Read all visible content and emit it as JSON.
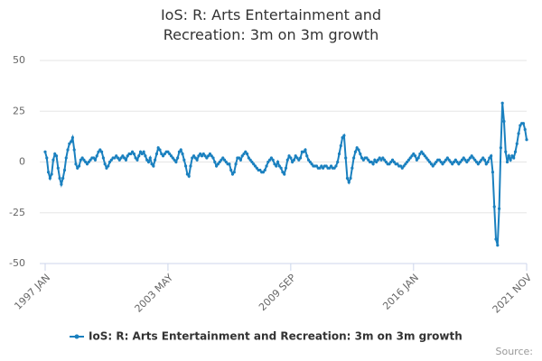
{
  "chart_data": {
    "type": "line",
    "title": "IoS: R: Arts Entertainment and Recreation: 3m on 3m growth",
    "source_label": "Source:",
    "categories": [
      "1997 JAN",
      null,
      null,
      null,
      null,
      null,
      null,
      null,
      null,
      null,
      null,
      null,
      null,
      null,
      null,
      null,
      null,
      null,
      null,
      null,
      null,
      null,
      null,
      null,
      null,
      null,
      null,
      null,
      null,
      null,
      null,
      null,
      null,
      null,
      null,
      null,
      null,
      null,
      null,
      null,
      null,
      null,
      null,
      null,
      null,
      null,
      null,
      null,
      null,
      null,
      null,
      null,
      null,
      null,
      null,
      null,
      null,
      null,
      null,
      null,
      null,
      null,
      null,
      null,
      null,
      null,
      null,
      null,
      null,
      null,
      null,
      null,
      null,
      null,
      null,
      null,
      "2003 MAY",
      null,
      null,
      null,
      null,
      null,
      null,
      null,
      null,
      null,
      null,
      null,
      null,
      null,
      null,
      null,
      null,
      null,
      null,
      null,
      null,
      null,
      null,
      null,
      null,
      null,
      null,
      null,
      null,
      null,
      null,
      null,
      null,
      null,
      null,
      null,
      null,
      null,
      null,
      null,
      null,
      null,
      null,
      null,
      null,
      null,
      null,
      null,
      null,
      null,
      null,
      null,
      null,
      null,
      null,
      null,
      null,
      null,
      null,
      null,
      null,
      null,
      null,
      null,
      null,
      null,
      null,
      null,
      null,
      null,
      null,
      null,
      null,
      null,
      null,
      null,
      "2009 SEP",
      null,
      null,
      null,
      null,
      null,
      null,
      null,
      null,
      null,
      null,
      null,
      null,
      null,
      null,
      null,
      null,
      null,
      null,
      null,
      null,
      null,
      null,
      null,
      null,
      null,
      null,
      null,
      null,
      null,
      null,
      null,
      null,
      null,
      null,
      null,
      null,
      null,
      null,
      null,
      null,
      null,
      null,
      null,
      null,
      null,
      null,
      null,
      null,
      null,
      null,
      null,
      null,
      null,
      null,
      null,
      null,
      null,
      null,
      null,
      null,
      null,
      null,
      null,
      null,
      null,
      null,
      null,
      null,
      null,
      null,
      null,
      null,
      null,
      null,
      null,
      "2016 JAN",
      null,
      null,
      null,
      null,
      null,
      null,
      null,
      null,
      null,
      null,
      null,
      null,
      null,
      null,
      null,
      null,
      null,
      null,
      null,
      null,
      null,
      null,
      null,
      null,
      null,
      null,
      null,
      null,
      null,
      null,
      null,
      null,
      null,
      null,
      null,
      null,
      null,
      null,
      null,
      null,
      null,
      null,
      null,
      null,
      null,
      null,
      null,
      null,
      null,
      null,
      null,
      null,
      null,
      null,
      null,
      null,
      null,
      null,
      null,
      null,
      null,
      null,
      null,
      null,
      null,
      null,
      null,
      null,
      null,
      "2021 NOV"
    ],
    "series": [
      {
        "name": "IoS: R: Arts Entertainment and Recreation: 3m on 3m growth",
        "color": "#1a80bf",
        "values": [
          5,
          2,
          -5,
          -8,
          -6,
          1,
          4,
          3,
          -3,
          -8,
          -11,
          -8,
          -4,
          2,
          6,
          9,
          10,
          12,
          6,
          -1,
          -3,
          -2,
          1,
          2,
          1,
          0,
          -1,
          0,
          1,
          2,
          2,
          1,
          3,
          5,
          6,
          5,
          2,
          -1,
          -3,
          -2,
          0,
          1,
          2,
          2,
          3,
          2,
          1,
          2,
          3,
          2,
          1,
          3,
          4,
          4,
          5,
          4,
          2,
          1,
          3,
          5,
          4,
          5,
          3,
          1,
          0,
          2,
          -1,
          -2,
          1,
          4,
          7,
          6,
          4,
          3,
          4,
          5,
          5,
          4,
          3,
          2,
          1,
          0,
          2,
          5,
          6,
          4,
          1,
          -2,
          -6,
          -7,
          -2,
          2,
          3,
          2,
          1,
          3,
          4,
          3,
          4,
          3,
          2,
          3,
          4,
          3,
          2,
          0,
          -2,
          -1,
          0,
          1,
          2,
          1,
          0,
          -1,
          -1,
          -4,
          -6,
          -5,
          -1,
          2,
          2,
          1,
          3,
          4,
          5,
          4,
          2,
          1,
          0,
          -1,
          -2,
          -3,
          -4,
          -4,
          -5,
          -5,
          -4,
          -2,
          0,
          1,
          2,
          1,
          -1,
          -2,
          0,
          -2,
          -3,
          -5,
          -6,
          -3,
          1,
          3,
          2,
          0,
          1,
          3,
          2,
          1,
          2,
          5,
          5,
          6,
          3,
          1,
          0,
          -1,
          -2,
          -2,
          -2,
          -3,
          -3,
          -2,
          -3,
          -2,
          -2,
          -3,
          -3,
          -2,
          -3,
          -3,
          -2,
          0,
          4,
          8,
          12,
          13,
          2,
          -8,
          -10,
          -8,
          -3,
          2,
          5,
          7,
          6,
          4,
          2,
          1,
          2,
          2,
          1,
          0,
          0,
          -1,
          1,
          0,
          1,
          2,
          1,
          2,
          1,
          0,
          -1,
          -1,
          0,
          1,
          0,
          -1,
          -1,
          -2,
          -2,
          -3,
          -2,
          -1,
          0,
          1,
          2,
          3,
          4,
          3,
          1,
          2,
          4,
          5,
          4,
          3,
          2,
          1,
          0,
          -1,
          -2,
          -1,
          0,
          1,
          1,
          0,
          -1,
          0,
          1,
          2,
          1,
          0,
          -1,
          0,
          1,
          0,
          -1,
          0,
          1,
          2,
          1,
          0,
          1,
          2,
          3,
          2,
          1,
          0,
          -1,
          0,
          1,
          2,
          1,
          -1,
          0,
          2,
          3,
          -5,
          -22,
          -38,
          -41,
          -23,
          7,
          29,
          20,
          5,
          0,
          3,
          1,
          3,
          2,
          5,
          9,
          14,
          18,
          19,
          19,
          16,
          11
        ]
      }
    ],
    "ylim": [
      -50,
      50
    ],
    "yticks": [
      -50,
      -25,
      0,
      25,
      50
    ],
    "grid": true
  }
}
